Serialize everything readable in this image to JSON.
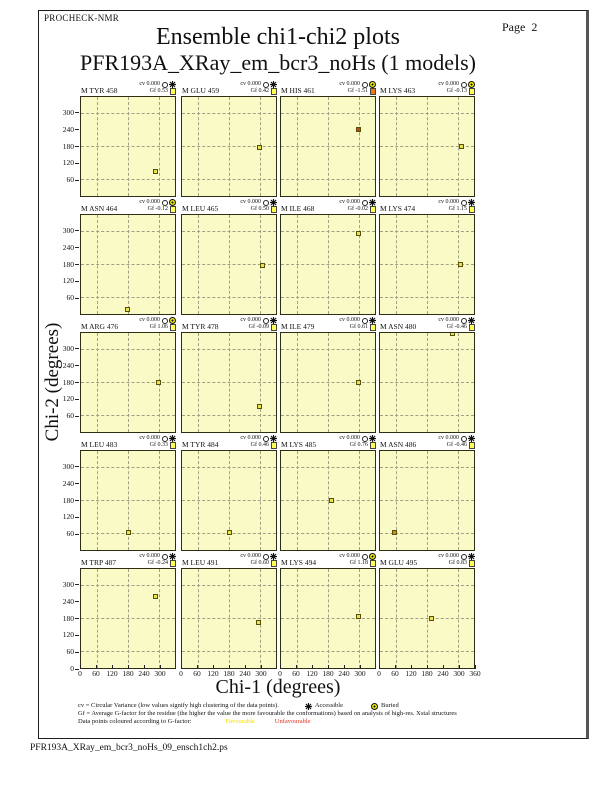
{
  "header": {
    "app": "PROCHECK-NMR",
    "page_label": "Page  2",
    "title": "Ensemble chi1-chi2 plots",
    "subtitle": "PFR193A_XRay_em_bcr3_noHs (1 models)"
  },
  "legend": {
    "cv_text": "cv = Circular Variance (low values signify high clustering of the data points).",
    "accessible_label": "Accessible",
    "buried_label": "Buried",
    "gf_text": "Gf = Average G-factor for the residue (the higher the value the more favourable the conformations)  based on analysis of high-res. Xstal structures",
    "colour_text": "Data points coloured according to G-factor:",
    "favourable_label": "Favourable",
    "unfavourable_label": "Unfavourable"
  },
  "footer": "PFR193A_XRay_em_bcr3_noHs_09_ensch1ch2.ps",
  "colors": {
    "plot_bg": "#fafac6",
    "grid_dash": "#a0a085",
    "plot_border": "#2e2e14",
    "favourable_point": "#e8e348",
    "unfavourable_point": "#c04a18",
    "intermediate_point": "#d9861c",
    "favourable_text": "#f0dc00",
    "unfavourable_text": "#e03020",
    "gf_square_yellow": "#ffff55",
    "gf_square_orange": "#e87818",
    "buried_icon": "#e8e800"
  },
  "chart_data": {
    "type": "scatter",
    "xlabel": "Chi-1 (degrees)",
    "ylabel": "Chi-2 (degrees)",
    "x_range": [
      0,
      360
    ],
    "y_range": [
      0,
      360
    ],
    "gridlines": [
      60,
      180,
      300
    ],
    "x_tick_labels": [
      0,
      60,
      120,
      180,
      240,
      300
    ],
    "x_end_tick": 360,
    "y_tick_labels": [
      300,
      240,
      180,
      120,
      60
    ],
    "y_bottom_tick": 0,
    "grid_shape": {
      "rows": 5,
      "cols": 4
    },
    "plots": [
      {
        "residue": "M TYR 458",
        "cv": "0.000",
        "gf": "0.53",
        "burial": "accessible",
        "gf_color": "yellow",
        "point": {
          "chi1": 290,
          "chi2": 88,
          "colour": "favourable"
        }
      },
      {
        "residue": "M GLU 459",
        "cv": "0.000",
        "gf": "0.42",
        "burial": "accessible",
        "gf_color": "yellow",
        "point": {
          "chi1": 300,
          "chi2": 175,
          "colour": "favourable"
        }
      },
      {
        "residue": "M HIS 461",
        "cv": "0.000",
        "gf": "-1.51",
        "burial": "buried",
        "gf_color": "orange",
        "point": {
          "chi1": 300,
          "chi2": 240,
          "colour": "unfavourable"
        }
      },
      {
        "residue": "M LYS 463",
        "cv": "0.000",
        "gf": "-0.13",
        "burial": "buried",
        "gf_color": "yellow",
        "point": {
          "chi1": 315,
          "chi2": 178,
          "colour": "favourable"
        }
      },
      {
        "residue": "M ASN 464",
        "cv": "0.000",
        "gf": "-0.12",
        "burial": "buried",
        "gf_color": "yellow",
        "point": {
          "chi1": 180,
          "chi2": 12,
          "colour": "favourable"
        }
      },
      {
        "residue": "M LEU 465",
        "cv": "0.000",
        "gf": "0.50",
        "burial": "accessible",
        "gf_color": "yellow",
        "point": {
          "chi1": 310,
          "chi2": 175,
          "colour": "favourable"
        }
      },
      {
        "residue": "M ILE 468",
        "cv": "0.000",
        "gf": "-0.02",
        "burial": "accessible",
        "gf_color": "yellow",
        "point": {
          "chi1": 300,
          "chi2": 293,
          "colour": "favourable"
        }
      },
      {
        "residue": "M LYS 474",
        "cv": "0.000",
        "gf": "1.15",
        "burial": "accessible",
        "gf_color": "yellow",
        "point": {
          "chi1": 312,
          "chi2": 180,
          "colour": "favourable"
        }
      },
      {
        "residue": "M ARG 476",
        "cv": "0.000",
        "gf": "1.06",
        "burial": "buried",
        "gf_color": "yellow",
        "point": {
          "chi1": 300,
          "chi2": 180,
          "colour": "favourable"
        }
      },
      {
        "residue": "M TYR 478",
        "cv": "0.000",
        "gf": "-0.09",
        "burial": "accessible",
        "gf_color": "yellow",
        "point": {
          "chi1": 300,
          "chi2": 90,
          "colour": "favourable"
        }
      },
      {
        "residue": "M ILE 479",
        "cv": "0.000",
        "gf": "0.61",
        "burial": "accessible",
        "gf_color": "yellow",
        "point": {
          "chi1": 300,
          "chi2": 180,
          "colour": "favourable"
        }
      },
      {
        "residue": "M ASN 480",
        "cv": "0.000",
        "gf": "-0.46",
        "burial": "accessible",
        "gf_color": "yellow",
        "point": {
          "chi1": 280,
          "chi2": 358,
          "colour": "favourable"
        }
      },
      {
        "residue": "M LEU 483",
        "cv": "0.000",
        "gf": "0.33",
        "burial": "accessible",
        "gf_color": "yellow",
        "point": {
          "chi1": 185,
          "chi2": 60,
          "colour": "favourable"
        }
      },
      {
        "residue": "M TYR 484",
        "cv": "0.000",
        "gf": "0.46",
        "burial": "accessible",
        "gf_color": "yellow",
        "point": {
          "chi1": 185,
          "chi2": 60,
          "colour": "favourable"
        }
      },
      {
        "residue": "M LYS 485",
        "cv": "0.000",
        "gf": "0.76",
        "burial": "accessible",
        "gf_color": "yellow",
        "point": {
          "chi1": 195,
          "chi2": 180,
          "colour": "favourable"
        }
      },
      {
        "residue": "M ASN 486",
        "cv": "0.000",
        "gf": "-0.46",
        "burial": "accessible",
        "gf_color": "yellow",
        "point": {
          "chi1": 55,
          "chi2": 60,
          "colour": "intermediate"
        }
      },
      {
        "residue": "M TRP 487",
        "cv": "0.000",
        "gf": "-0.24",
        "burial": "accessible",
        "gf_color": "yellow",
        "point": {
          "chi1": 290,
          "chi2": 258,
          "colour": "favourable"
        }
      },
      {
        "residue": "M LEU 491",
        "cv": "0.000",
        "gf": "0.60",
        "burial": "accessible",
        "gf_color": "yellow",
        "point": {
          "chi1": 295,
          "chi2": 163,
          "colour": "favourable"
        }
      },
      {
        "residue": "M LYS 494",
        "cv": "0.000",
        "gf": "1.18",
        "burial": "buried",
        "gf_color": "yellow",
        "point": {
          "chi1": 300,
          "chi2": 185,
          "colour": "favourable"
        }
      },
      {
        "residue": "M GLU 495",
        "cv": "0.000",
        "gf": "0.83",
        "burial": "accessible",
        "gf_color": "yellow",
        "point": {
          "chi1": 200,
          "chi2": 180,
          "colour": "favourable"
        }
      }
    ]
  }
}
